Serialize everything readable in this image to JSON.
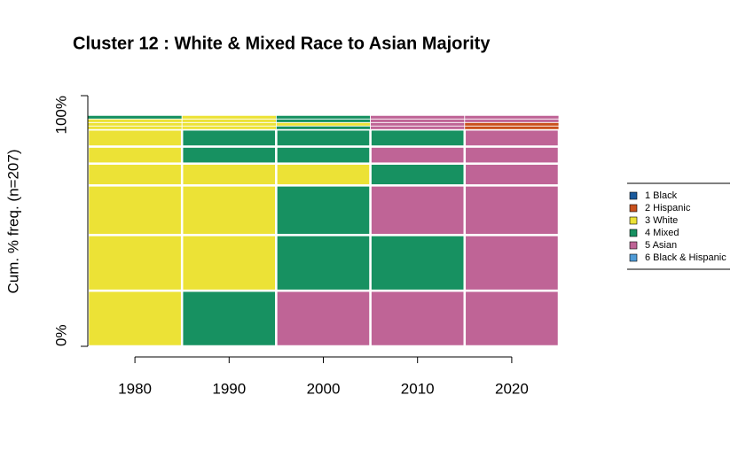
{
  "chart_data": {
    "type": "sequence",
    "title": "Cluster 12 : White & Mixed Race to Asian Majority",
    "ylabel": "Cum. % freq. (n=207)",
    "x": [
      1980,
      1990,
      2000,
      2010,
      2020
    ],
    "xlim": [
      1975,
      2025
    ],
    "xticks": [
      1980,
      1990,
      2000,
      2010,
      2020
    ],
    "ylim": [
      0,
      100
    ],
    "yticks": [
      {
        "value": 0,
        "label": "0%"
      },
      {
        "value": 100,
        "label": "100%"
      }
    ],
    "states": [
      {
        "name": "1 Black",
        "color": "#1a5a9c"
      },
      {
        "name": "2 Hispanic",
        "color": "#c9501c"
      },
      {
        "name": "3 White",
        "color": "#ece236"
      },
      {
        "name": "4 Mixed",
        "color": "#179161"
      },
      {
        "name": "5 Asian",
        "color": "#bf6496"
      },
      {
        "name": "6 Black & Hispanic",
        "color": "#4f9bd7"
      }
    ],
    "sequences": [
      {
        "states": [
          "3 White",
          "4 Mixed",
          "5 Asian",
          "5 Asian",
          "5 Asian"
        ],
        "freq": 22.2
      },
      {
        "states": [
          "3 White",
          "3 White",
          "4 Mixed",
          "4 Mixed",
          "5 Asian"
        ],
        "freq": 22.2
      },
      {
        "states": [
          "3 White",
          "3 White",
          "4 Mixed",
          "5 Asian",
          "5 Asian"
        ],
        "freq": 19.8
      },
      {
        "states": [
          "3 White",
          "3 White",
          "3 White",
          "4 Mixed",
          "5 Asian"
        ],
        "freq": 8.7
      },
      {
        "states": [
          "3 White",
          "4 Mixed",
          "4 Mixed",
          "5 Asian",
          "5 Asian"
        ],
        "freq": 6.8
      },
      {
        "states": [
          "3 White",
          "4 Mixed",
          "4 Mixed",
          "4 Mixed",
          "5 Asian"
        ],
        "freq": 6.8
      },
      {
        "states": [
          "3 White",
          "3 White",
          "4 Mixed",
          "5 Asian",
          "2 Hispanic"
        ],
        "freq": 1.4
      },
      {
        "states": [
          "3 White",
          "3 White",
          "3 White",
          "5 Asian",
          "2 Hispanic"
        ],
        "freq": 1.4
      },
      {
        "states": [
          "3 White",
          "3 White",
          "4 Mixed",
          "5 Asian",
          "5 Asian"
        ],
        "freq": 1.4
      },
      {
        "states": [
          "4 Mixed",
          "3 White",
          "4 Mixed",
          "5 Asian",
          "5 Asian"
        ],
        "freq": 1.4
      }
    ]
  }
}
